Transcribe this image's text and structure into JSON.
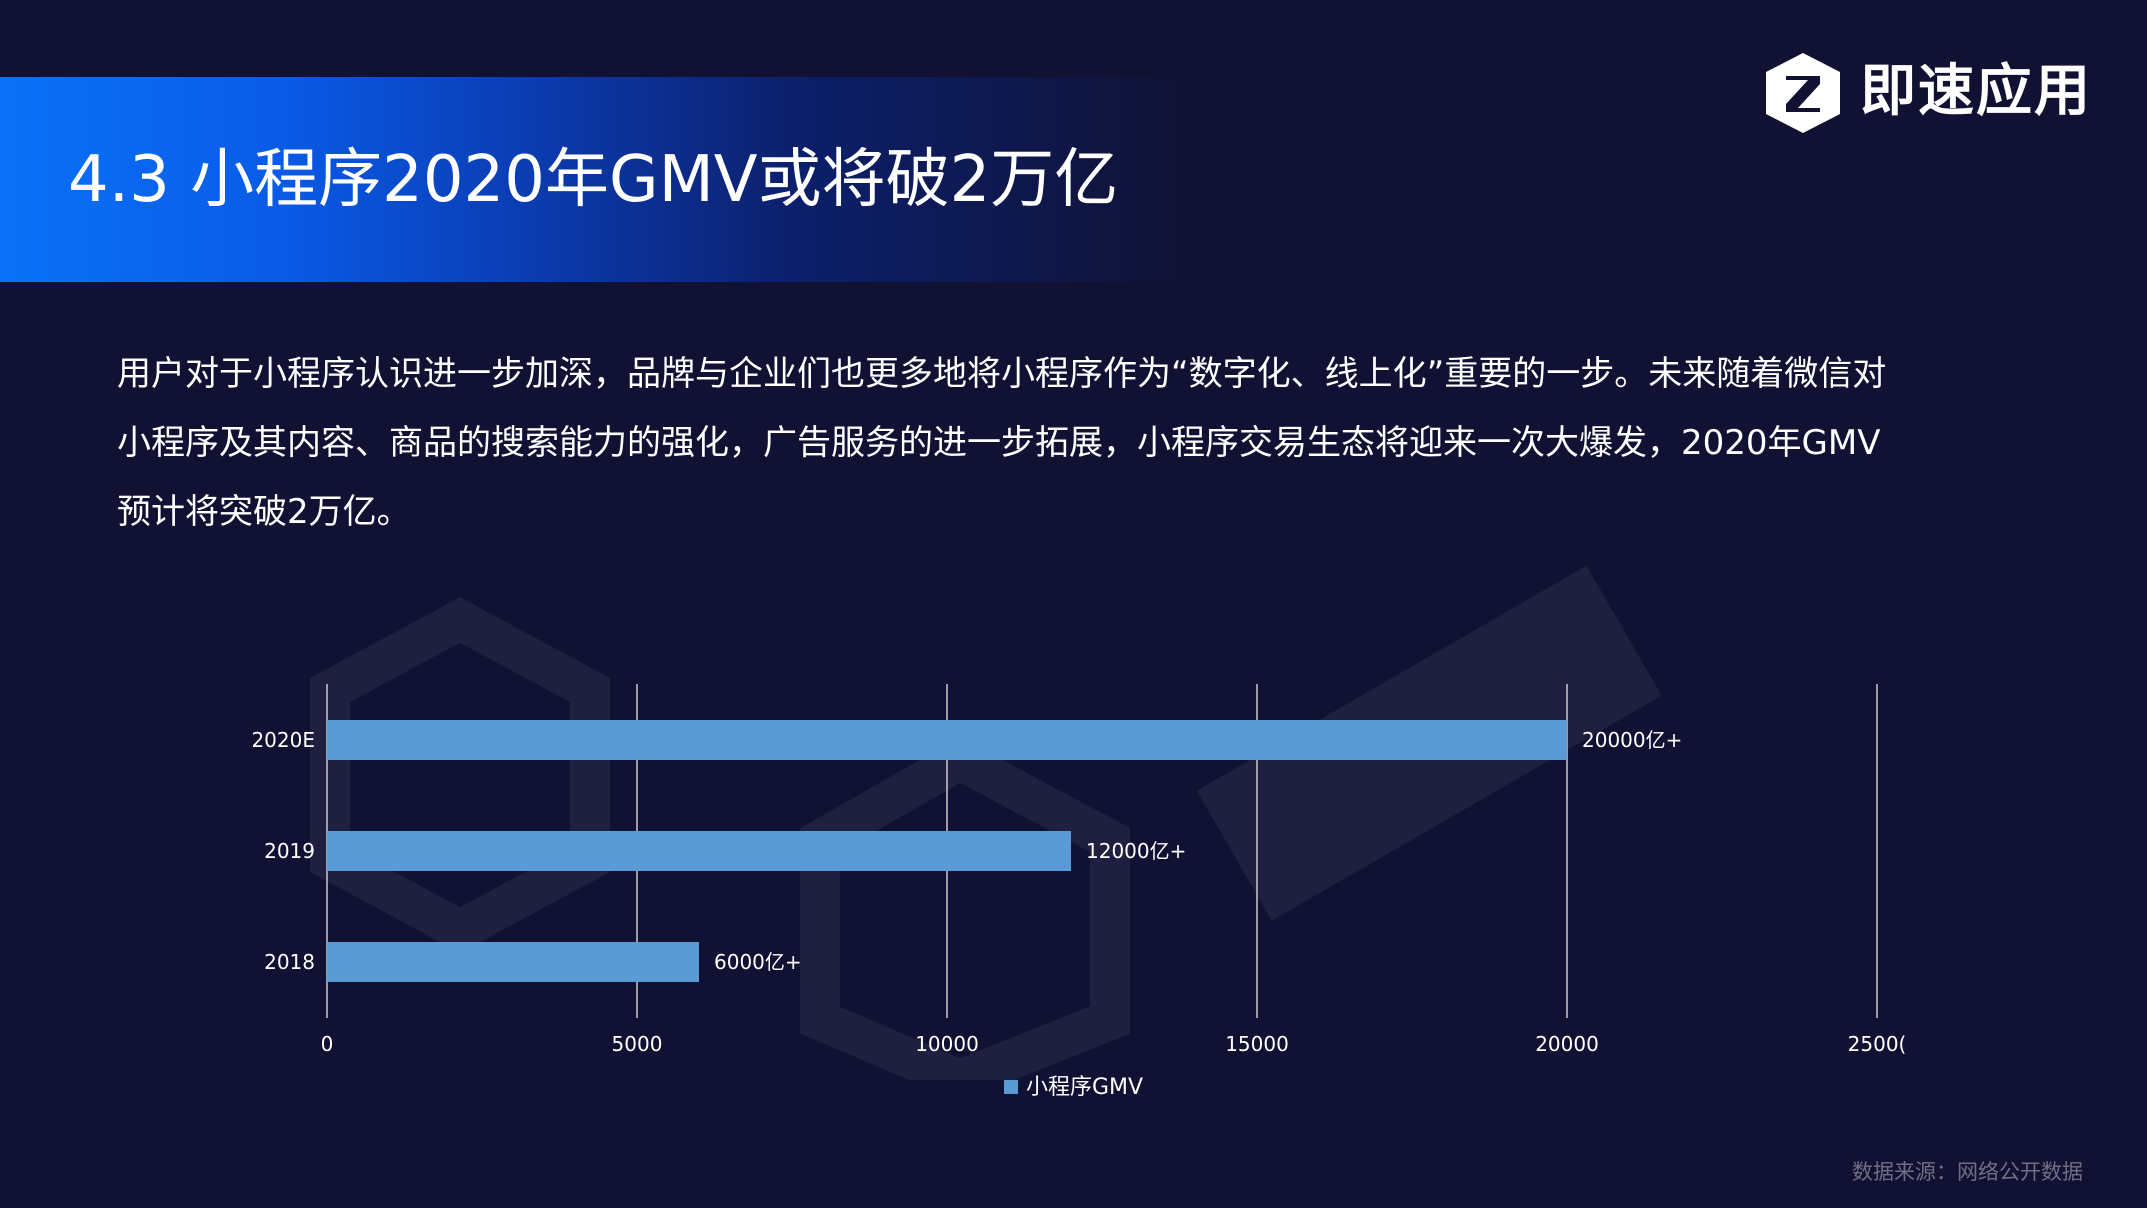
{
  "header": {
    "title": "4.3 小程序2020年GMV或将破2万亿",
    "logo_text": "即速应用",
    "logo_icon": "z-hexagon-logo"
  },
  "body": {
    "lines": [
      "用户对于小程序认识进一步加深，品牌与企业们也更多地将小程序作为“数字化、线上化”重要的一步。未来随着微信对",
      "小程序及其内容、商品的搜索能力的强化，广告服务的进一步拓展，小程序交易生态将迎来一次大爆发，2020年GMV",
      "预计将突破2万亿。"
    ]
  },
  "chart_data": {
    "type": "bar",
    "orientation": "horizontal",
    "categories": [
      "2020E",
      "2019",
      "2018"
    ],
    "series": [
      {
        "name": "小程序GMV",
        "values": [
          20000,
          12000,
          6000
        ],
        "data_labels": [
          "20000亿+",
          "12000亿+",
          "6000亿+"
        ],
        "color": "#5b9bd5"
      }
    ],
    "x_ticks": [
      "0",
      "5000",
      "10000",
      "15000",
      "20000",
      "2500("
    ],
    "xlim": [
      0,
      25000
    ],
    "grid": true,
    "legend_position": "bottom",
    "colors": {
      "gridline": "#e6e6e6",
      "tick_text": "#ffffff"
    }
  },
  "footer": {
    "source": "数据来源：网络公开数据"
  },
  "colors": {
    "background": "#111233",
    "title_band_start": "#0a72f8",
    "accent_bar": "#5b9bd5"
  }
}
